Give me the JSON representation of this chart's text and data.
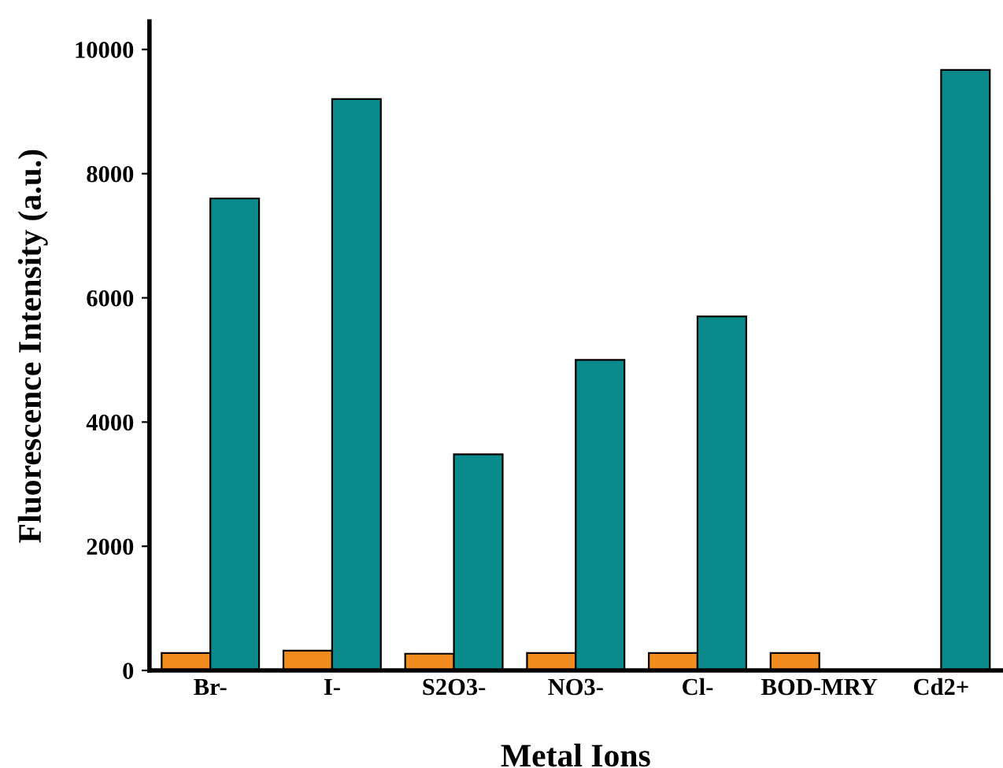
{
  "chart_data": {
    "type": "bar",
    "xlabel": "Metal Ions",
    "ylabel": "Fluorescence Intensity (a.u.)",
    "categories": [
      "Br-",
      "I-",
      "S2O3-",
      "NO3-",
      "Cl-",
      "BOD-MRY",
      "Cd2+"
    ],
    "series": [
      {
        "color": "#f28c1e",
        "values": [
          280,
          320,
          270,
          280,
          280,
          280,
          null
        ]
      },
      {
        "color": "#0a8a8a",
        "values": [
          7600,
          9200,
          3480,
          5000,
          5700,
          null,
          9670
        ]
      }
    ],
    "ylim": [
      0,
      10450
    ],
    "yticks": [
      0,
      2000,
      4000,
      6000,
      8000,
      10000
    ],
    "grid": false,
    "legend": false
  }
}
